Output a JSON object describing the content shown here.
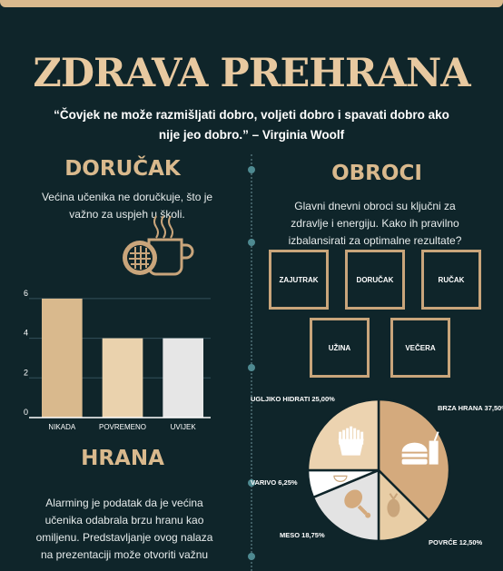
{
  "title": "ZDRAVA PREHRANA",
  "quote": "“Čovjek ne može razmišljati dobro, voljeti dobro i spavati dobro ako nije jeo dobro.” – Virginia Woolf",
  "breakfast": {
    "heading": "DORUČAK",
    "text": "Većina učenika ne doručkuje, što je važno za uspjeh u školi."
  },
  "meals": {
    "heading": "OBROCI",
    "text": "Glavni dnevni obroci su ključni za zdravlje i energiju. Kako ih pravilno izbalansirati za optimalne rezultate?",
    "items": [
      "ZAJUTRAK",
      "DORUČAK",
      "RUČAK",
      "UŽINA",
      "VEČERA"
    ]
  },
  "food": {
    "heading": "HRANA",
    "text": "Alarming je podatak da je većina učenika odabrala brzu hranu kao omiljenu. Predstavljanje ovog nalaza na prezentaciji može otvoriti važnu"
  },
  "colors": {
    "tan": "#d9b98d",
    "cream": "#ead2ad",
    "light": "#e6e6e6",
    "background": "#0f252a"
  },
  "chart_data": [
    {
      "type": "bar",
      "categories": [
        "NIKADA",
        "POVREMENO",
        "UVIJEK"
      ],
      "values": [
        6,
        4,
        4
      ],
      "yticks": [
        0,
        2,
        4,
        6
      ],
      "ylim": [
        0,
        6.5
      ],
      "grid": true,
      "colors": [
        "#d9b98d",
        "#ead2ad",
        "#e6e6e6"
      ]
    },
    {
      "type": "pie",
      "slices": [
        {
          "label": "BRZA HRANA 37,50%",
          "value": 37.5,
          "color": "#d4aa7d",
          "icon": "burger-icon"
        },
        {
          "label": "POVRĆE 12,50%",
          "value": 12.5,
          "color": "#e8cda5",
          "icon": "vegetable-icon"
        },
        {
          "label": "MESO 18,75%",
          "value": 18.75,
          "color": "#e3e3e3",
          "icon": "drumstick-icon"
        },
        {
          "label": "VARIVO 6,25%",
          "value": 6.25,
          "color": "#ffffff",
          "icon": "soup-icon"
        },
        {
          "label": "UGLJIKO HIDRATI 25,00%",
          "value": 25.0,
          "color": "#ecd3b0",
          "icon": "fries-icon"
        }
      ]
    }
  ]
}
